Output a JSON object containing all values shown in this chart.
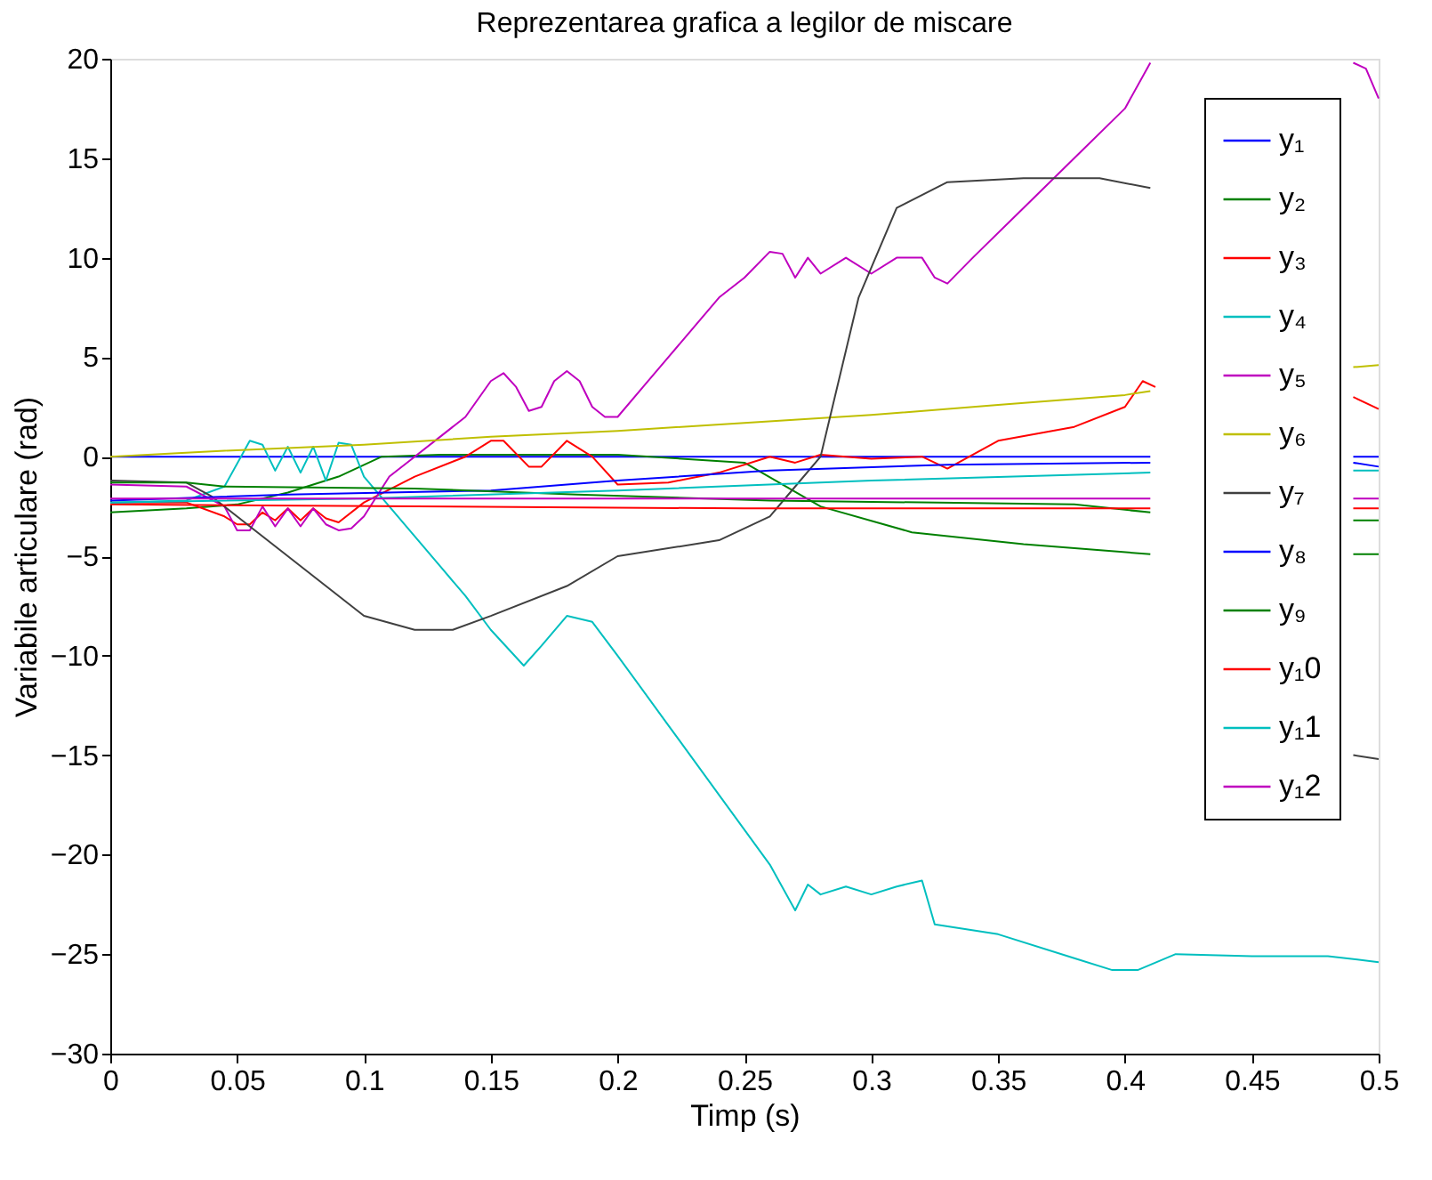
{
  "chart_data": {
    "type": "line",
    "title": "Reprezentarea grafica a legilor de miscare",
    "xlabel": "Timp (s)",
    "ylabel": "Variabile articulare (rad)",
    "xlim": [
      0,
      0.5
    ],
    "ylim": [
      -30,
      20
    ],
    "xticks": [
      0,
      0.05,
      0.1,
      0.15,
      0.2,
      0.25,
      0.3,
      0.35,
      0.4,
      0.45,
      0.5
    ],
    "yticks": [
      -30,
      -25,
      -20,
      -15,
      -10,
      -5,
      0,
      5,
      10,
      15,
      20
    ],
    "grid": false,
    "legend": "top right",
    "line_style": "solid",
    "marker": "none",
    "series": [
      {
        "name": "y₁",
        "color": "#0000ff",
        "x": [
          0,
          0.41,
          0.45,
          0.49,
          0.5
        ],
        "values": [
          0,
          0,
          null,
          0,
          0
        ]
      },
      {
        "name": "y₂",
        "color": "#008000",
        "x": [
          0,
          0.03,
          0.05,
          0.07,
          0.09,
          0.107,
          0.13,
          0.2,
          0.25,
          0.28,
          0.316,
          0.36,
          0.41,
          0.45,
          0.49,
          0.5
        ],
        "values": [
          -2.8,
          -2.6,
          -2.4,
          -1.8,
          -1,
          0,
          0.1,
          0.1,
          -0.3,
          -2.5,
          -3.8,
          -4.4,
          -4.9,
          null,
          -4.9,
          -4.9
        ]
      },
      {
        "name": "y₃",
        "color": "#ff0000",
        "x": [
          0,
          0.03,
          0.045,
          0.05,
          0.055,
          0.06,
          0.065,
          0.07,
          0.075,
          0.08,
          0.085,
          0.09,
          0.1,
          0.12,
          0.14,
          0.15,
          0.155,
          0.165,
          0.17,
          0.18,
          0.19,
          0.2,
          0.22,
          0.24,
          0.26,
          0.27,
          0.28,
          0.3,
          0.32,
          0.33,
          0.35,
          0.38,
          0.4,
          0.407,
          0.412,
          0.45,
          0.49,
          0.5
        ],
        "values": [
          -2.3,
          -2.3,
          -3,
          -3.4,
          -3.4,
          -2.8,
          -3.2,
          -2.6,
          -3.2,
          -2.6,
          -3.1,
          -3.3,
          -2.3,
          -1,
          0,
          0.8,
          0.8,
          -0.5,
          -0.5,
          0.8,
          0,
          -1.4,
          -1.3,
          -0.8,
          0,
          -0.3,
          0.1,
          -0.1,
          0,
          -0.6,
          0.8,
          1.5,
          2.5,
          3.8,
          3.5,
          null,
          3,
          2.4
        ]
      },
      {
        "name": "y₄",
        "color": "#00bfbf",
        "x": [
          0,
          0.03,
          0.045,
          0.055,
          0.06,
          0.065,
          0.07,
          0.075,
          0.08,
          0.085,
          0.09,
          0.095,
          0.1,
          0.11,
          0.12,
          0.13,
          0.14,
          0.15,
          0.163,
          0.17,
          0.18,
          0.19,
          0.2,
          0.22,
          0.24,
          0.26,
          0.27,
          0.275,
          0.28,
          0.29,
          0.3,
          0.31,
          0.32,
          0.325,
          0.35,
          0.38,
          0.395,
          0.405,
          0.42,
          0.45,
          0.48,
          0.5
        ],
        "values": [
          -2.3,
          -2.2,
          -1.5,
          0.8,
          0.6,
          -0.7,
          0.5,
          -0.8,
          0.5,
          -1.2,
          0.7,
          0.6,
          -1,
          -2.5,
          -4,
          -5.5,
          -7,
          -8.7,
          -10.5,
          -9.5,
          -8,
          -8.3,
          -10,
          -13.5,
          -17,
          -20.5,
          -22.8,
          -21.5,
          -22,
          -21.6,
          -22,
          -21.6,
          -21.3,
          -23.5,
          -24,
          -25.2,
          -25.8,
          -25.8,
          -25,
          -25.1,
          -25.1,
          -25.4
        ]
      },
      {
        "name": "y₅",
        "color": "#bf00bf",
        "x": [
          0,
          0.03,
          0.045,
          0.05,
          0.055,
          0.06,
          0.065,
          0.07,
          0.075,
          0.08,
          0.085,
          0.09,
          0.095,
          0.1,
          0.11,
          0.12,
          0.13,
          0.14,
          0.15,
          0.155,
          0.16,
          0.165,
          0.17,
          0.175,
          0.18,
          0.185,
          0.19,
          0.195,
          0.2,
          0.21,
          0.22,
          0.23,
          0.24,
          0.25,
          0.26,
          0.265,
          0.27,
          0.275,
          0.28,
          0.29,
          0.3,
          0.31,
          0.32,
          0.325,
          0.33,
          0.34,
          0.36,
          0.38,
          0.4,
          0.41,
          0.45,
          0.49,
          0.495,
          0.5
        ],
        "values": [
          -1.4,
          -1.5,
          -2.5,
          -3.7,
          -3.7,
          -2.5,
          -3.5,
          -2.6,
          -3.5,
          -2.6,
          -3.4,
          -3.7,
          -3.6,
          -3,
          -1,
          0,
          1,
          2,
          3.8,
          4.2,
          3.5,
          2.3,
          2.5,
          3.8,
          4.3,
          3.8,
          2.5,
          2,
          2,
          3.5,
          5,
          6.5,
          8,
          9,
          10.3,
          10.2,
          9,
          10,
          9.2,
          10,
          9.2,
          10,
          10,
          9,
          8.7,
          10,
          12.5,
          15,
          17.5,
          19.8,
          null,
          19.8,
          19.5,
          18
        ]
      },
      {
        "name": "y₆",
        "color": "#bfbf00",
        "x": [
          0,
          0.045,
          0.1,
          0.15,
          0.2,
          0.25,
          0.3,
          0.35,
          0.4,
          0.41,
          0.45,
          0.49,
          0.5
        ],
        "values": [
          0,
          0.3,
          0.6,
          1,
          1.3,
          1.7,
          2.1,
          2.6,
          3.1,
          3.3,
          null,
          4.5,
          4.6
        ]
      },
      {
        "name": "y₇",
        "color": "#404040",
        "x": [
          0,
          0.03,
          0.04,
          0.07,
          0.1,
          0.12,
          0.135,
          0.15,
          0.18,
          0.2,
          0.24,
          0.26,
          0.27,
          0.28,
          0.295,
          0.31,
          0.33,
          0.36,
          0.39,
          0.41,
          0.45,
          0.49,
          0.5
        ],
        "values": [
          -1.2,
          -1.3,
          -2,
          -5,
          -8,
          -8.7,
          -8.7,
          -8,
          -6.5,
          -5,
          -4.2,
          -3,
          -1.5,
          0,
          8,
          12.5,
          13.8,
          14,
          14,
          13.5,
          null,
          -15,
          -15.2
        ]
      },
      {
        "name": "y₈",
        "color": "#0000ff",
        "x": [
          0,
          0.07,
          0.15,
          0.2,
          0.26,
          0.33,
          0.41,
          0.45,
          0.49,
          0.5
        ],
        "values": [
          -2.2,
          -1.9,
          -1.7,
          -1.2,
          -0.7,
          -0.4,
          -0.3,
          null,
          -0.3,
          -0.5
        ]
      },
      {
        "name": "y₉",
        "color": "#008000",
        "x": [
          0,
          0.03,
          0.045,
          0.12,
          0.184,
          0.26,
          0.38,
          0.41,
          0.45,
          0.49,
          0.5
        ],
        "values": [
          -1.3,
          -1.3,
          -1.5,
          -1.6,
          -1.9,
          -2.2,
          -2.4,
          -2.8,
          null,
          -3.2,
          -3.2
        ]
      },
      {
        "name": "y₁0",
        "color": "#ff0000",
        "x": [
          0,
          0.25,
          0.41,
          0.45,
          0.49,
          0.5
        ],
        "values": [
          -2.4,
          -2.6,
          -2.6,
          null,
          -2.6,
          -2.6
        ]
      },
      {
        "name": "y₁1",
        "color": "#00bfbf",
        "x": [
          0,
          0.1,
          0.2,
          0.3,
          0.41,
          0.45,
          0.49,
          0.5
        ],
        "values": [
          -2.3,
          -2.1,
          -1.7,
          -1.2,
          -0.8,
          null,
          -0.7,
          -0.7
        ]
      },
      {
        "name": "y₁2",
        "color": "#bf00bf",
        "x": [
          0,
          0.41,
          0.45,
          0.49,
          0.5
        ],
        "values": [
          -2.1,
          -2.1,
          null,
          -2.1,
          -2.1
        ]
      }
    ]
  }
}
